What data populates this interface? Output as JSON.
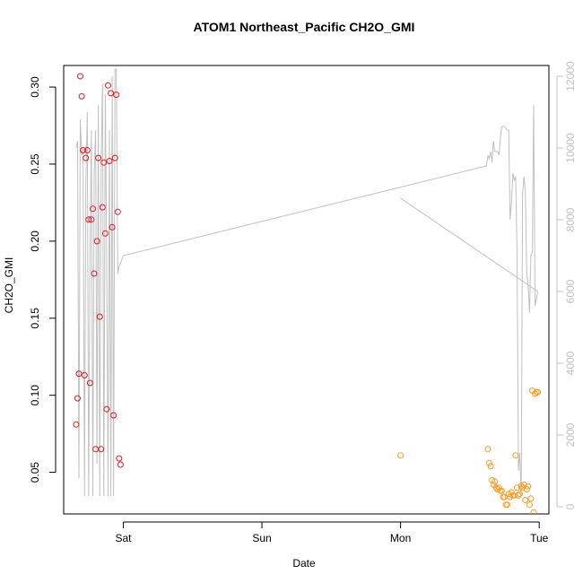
{
  "chart_data": {
    "type": "scatter",
    "title": "ATOM1 Northeast_Pacific CH2O_GMI",
    "xlabel": "Date",
    "ylabel": "CH2O_GMI",
    "x_tick_labels": [
      "Sat",
      "Sun",
      "Mon",
      "Tue"
    ],
    "x_ticks_day": [
      1,
      2,
      3,
      4
    ],
    "xlim_day": [
      0.57,
      4.07
    ],
    "ylim": [
      0.023,
      0.314
    ],
    "y_ticks": [
      0.05,
      0.1,
      0.15,
      0.2,
      0.25,
      0.3
    ],
    "y_tick_labels": [
      "0.05",
      "0.10",
      "0.15",
      "0.20",
      "0.25",
      "0.30"
    ],
    "y2lim": [
      -200,
      12300
    ],
    "y2_ticks": [
      0,
      2000,
      4000,
      6000,
      8000,
      10000,
      12000
    ],
    "y2_tick_labels": [
      "0",
      "2000",
      "4000",
      "6000",
      "8000",
      "10000",
      "12000"
    ],
    "colors": {
      "series1": "#e41a1c",
      "series2": "#ff9a1f",
      "altitude": "#c0c0c0"
    },
    "series": [
      {
        "marker": "circle-open",
        "color": "#e41a1c",
        "x_day": [
          0.66,
          0.67,
          0.68,
          0.69,
          0.7,
          0.71,
          0.72,
          0.73,
          0.74,
          0.75,
          0.76,
          0.77,
          0.78,
          0.79,
          0.8,
          0.81,
          0.82,
          0.83,
          0.84,
          0.85,
          0.86,
          0.87,
          0.88,
          0.89,
          0.9,
          0.91,
          0.92,
          0.93,
          0.94,
          0.95,
          0.96,
          0.97,
          0.98
        ],
        "y": [
          0.081,
          0.098,
          0.114,
          0.307,
          0.294,
          0.259,
          0.113,
          0.254,
          0.259,
          0.214,
          0.108,
          0.214,
          0.221,
          0.179,
          0.065,
          0.2,
          0.254,
          0.151,
          0.065,
          0.222,
          0.251,
          0.205,
          0.091,
          0.301,
          0.252,
          0.296,
          0.209,
          0.087,
          0.254,
          0.295,
          0.219,
          0.059,
          0.055
        ]
      },
      {
        "marker": "circle-open",
        "color": "#ff9a1f",
        "x_day": [
          3.0,
          3.63,
          3.64,
          3.65,
          3.66,
          3.67,
          3.68,
          3.69,
          3.7,
          3.71,
          3.72,
          3.73,
          3.74,
          3.75,
          3.76,
          3.77,
          3.78,
          3.79,
          3.8,
          3.81,
          3.82,
          3.83,
          3.84,
          3.85,
          3.86,
          3.87,
          3.88,
          3.89,
          3.9,
          3.91,
          3.92,
          3.93,
          3.94,
          3.95,
          3.96,
          3.97,
          3.98,
          3.99
        ],
        "y": [
          0.061,
          0.065,
          0.056,
          0.054,
          0.045,
          0.042,
          0.044,
          0.04,
          0.039,
          0.04,
          0.038,
          0.038,
          0.034,
          0.034,
          0.029,
          0.029,
          0.036,
          0.034,
          0.037,
          0.035,
          0.035,
          0.061,
          0.04,
          0.035,
          0.036,
          0.041,
          0.04,
          0.042,
          0.032,
          0.039,
          0.041,
          0.029,
          0.033,
          0.103,
          0.024,
          0.101,
          0.102,
          0.102
        ]
      }
    ],
    "altitude_line": {
      "axis": "right",
      "color": "#c0c0c0",
      "x_day": [
        0.66,
        0.67,
        0.68,
        0.69,
        0.7,
        0.71,
        0.72,
        0.73,
        0.74,
        0.75,
        0.76,
        0.77,
        0.78,
        0.79,
        0.8,
        0.81,
        0.82,
        0.83,
        0.84,
        0.85,
        0.86,
        0.87,
        0.88,
        0.89,
        0.9,
        0.91,
        0.92,
        0.93,
        0.94,
        0.95,
        0.96,
        0.97,
        0.98,
        0.99,
        1.0,
        3.62,
        3.63,
        3.64,
        3.65,
        3.66,
        3.67,
        3.68,
        3.69,
        3.7,
        3.71,
        3.72,
        3.73,
        3.74,
        3.75,
        3.76,
        3.77,
        3.78,
        3.79,
        3.8,
        3.81,
        3.82,
        3.83,
        3.84,
        3.85,
        3.86,
        3.87,
        3.88,
        3.89,
        3.9,
        3.91,
        3.92,
        3.93,
        3.94,
        3.95,
        3.96,
        3.97,
        3.98,
        3.99
      ],
      "y": [
        10000,
        10200,
        800,
        10800,
        9800,
        10000,
        300,
        9000,
        11000,
        300,
        7000,
        10500,
        300,
        9300,
        10500,
        1200,
        11200,
        300,
        9500,
        11800,
        300,
        11500,
        7000,
        300,
        10500,
        300,
        12000,
        300,
        12200,
        12200,
        6500,
        6700,
        6800,
        6900,
        7000,
        9500,
        9800,
        9700,
        9900,
        9600,
        10200,
        9900,
        9900,
        9900,
        9800,
        10300,
        10600,
        10600,
        10600,
        10550,
        10500,
        10500,
        8000,
        8500,
        9300,
        9100,
        9200,
        7200,
        1000,
        1500,
        300,
        8700,
        9200,
        8800,
        6500,
        6200,
        5400,
        7000,
        7100,
        11200,
        5600,
        5800,
        6000
      ]
    },
    "diag_line": {
      "axis": "right",
      "color": "#c0c0c0",
      "x_day": [
        3.0,
        3.99
      ],
      "y": [
        8600,
        6000
      ]
    }
  }
}
